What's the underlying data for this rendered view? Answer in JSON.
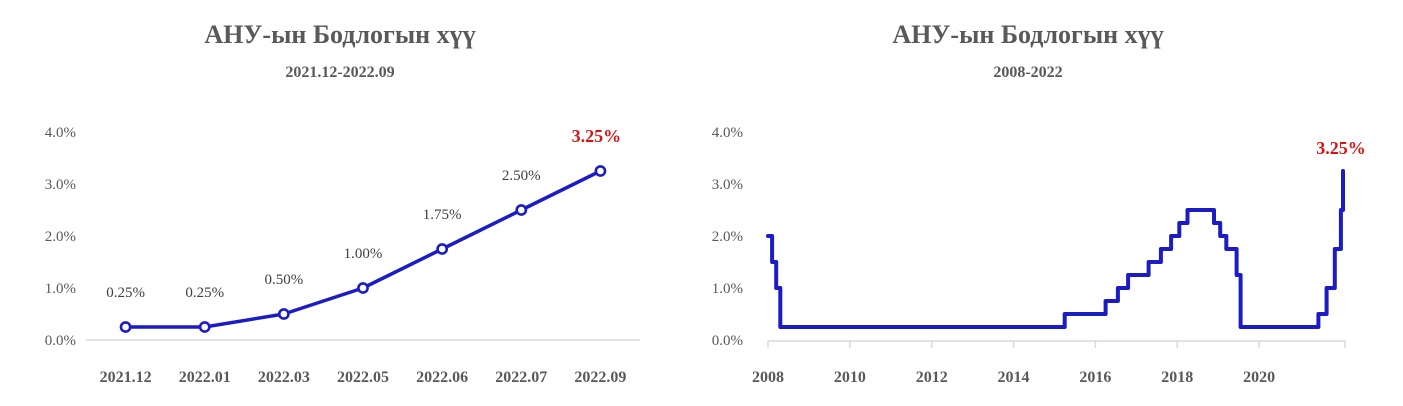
{
  "colors": {
    "line_blue": "#1c1cc4",
    "highlight_red": "#d91414",
    "title_gray": "#595959",
    "axis_gray": "#d9d9d9",
    "tick_text_gray": "#595959",
    "data_label_dark": "#404040",
    "marker_fill": "#ffffff"
  },
  "chart_data": [
    {
      "type": "line",
      "title": "АНУ-ын Бодлогын хүү",
      "subtitle": "2021.12-2022.09",
      "categories": [
        "2021.12",
        "2022.01",
        "2022.03",
        "2022.05",
        "2022.06",
        "2022.07",
        "2022.09"
      ],
      "values": [
        0.25,
        0.25,
        0.5,
        1.0,
        1.75,
        2.5,
        3.25
      ],
      "data_labels": [
        "0.25%",
        "0.25%",
        "0.50%",
        "1.00%",
        "1.75%",
        "2.50%",
        "3.25%"
      ],
      "highlight_last": true,
      "marker": "open-circle",
      "ylabel_ticks": [
        "0.0%",
        "1.0%",
        "2.0%",
        "3.0%",
        "4.0%"
      ],
      "ytick_values": [
        0,
        1,
        2,
        3,
        4
      ],
      "ylim": [
        0,
        4
      ],
      "grid": false,
      "legend": "none"
    },
    {
      "type": "step-line",
      "title": "АНУ-ын Бодлогын хүү",
      "subtitle": "2008-2022",
      "steps": [
        {
          "x": 2008.0,
          "v": 2.0
        },
        {
          "x": 2008.1,
          "v": 1.5
        },
        {
          "x": 2008.2,
          "v": 1.0
        },
        {
          "x": 2008.3,
          "v": 0.25
        },
        {
          "x": 2015.25,
          "v": 0.5
        },
        {
          "x": 2016.25,
          "v": 0.75
        },
        {
          "x": 2016.55,
          "v": 1.0
        },
        {
          "x": 2016.8,
          "v": 1.25
        },
        {
          "x": 2017.3,
          "v": 1.5
        },
        {
          "x": 2017.6,
          "v": 1.75
        },
        {
          "x": 2017.85,
          "v": 2.0
        },
        {
          "x": 2018.05,
          "v": 2.25
        },
        {
          "x": 2018.25,
          "v": 2.5
        },
        {
          "x": 2018.9,
          "v": 2.25
        },
        {
          "x": 2019.05,
          "v": 2.0
        },
        {
          "x": 2019.2,
          "v": 1.75
        },
        {
          "x": 2019.45,
          "v": 1.25
        },
        {
          "x": 2019.55,
          "v": 0.25
        },
        {
          "x": 2021.45,
          "v": 0.5
        },
        {
          "x": 2021.65,
          "v": 1.0
        },
        {
          "x": 2021.85,
          "v": 1.75
        },
        {
          "x": 2022.0,
          "v": 2.5
        },
        {
          "x": 2022.05,
          "v": 3.25
        }
      ],
      "final_value_label": "3.25%",
      "xtick_labels": [
        "2008",
        "2010",
        "2012",
        "2014",
        "2016",
        "2018",
        "2020"
      ],
      "xtick_values": [
        2008,
        2010,
        2012,
        2014,
        2016,
        2018,
        2020
      ],
      "xlim": [
        2008,
        2022.1
      ],
      "ylabel_ticks": [
        "0.0%",
        "1.0%",
        "2.0%",
        "3.0%",
        "4.0%"
      ],
      "ytick_values": [
        0,
        1,
        2,
        3,
        4
      ],
      "ylim": [
        0,
        4
      ],
      "grid": false,
      "legend": "none"
    }
  ]
}
